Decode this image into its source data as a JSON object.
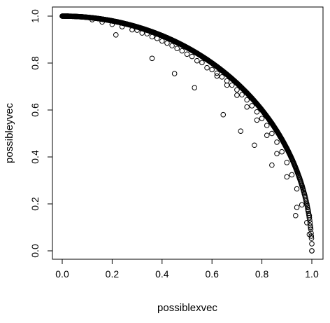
{
  "chart_data": {
    "type": "scatter",
    "title": "",
    "xlabel": "possiblexvec",
    "ylabel": "possibleyvec",
    "xlim": [
      0.0,
      1.0
    ],
    "ylim": [
      0.0,
      1.0
    ],
    "x_ticks": [
      0.0,
      0.2,
      0.4,
      0.6,
      0.8,
      1.0
    ],
    "y_ticks": [
      0.0,
      0.2,
      0.4,
      0.6,
      0.8,
      1.0
    ],
    "x_tick_labels": [
      "0.0",
      "0.2",
      "0.4",
      "0.6",
      "0.8",
      "1.0"
    ],
    "y_tick_labels": [
      "0.0",
      "0.2",
      "0.4",
      "0.6",
      "0.8",
      "1.0"
    ],
    "grid": false,
    "legend": "none",
    "marker": "open-circle",
    "marker_color": "#000000",
    "series": [
      {
        "points": [
          [
            0.0,
            1.0
          ],
          [
            0.02,
            1.0
          ],
          [
            0.04,
            0.999
          ],
          [
            0.06,
            0.998
          ],
          [
            0.08,
            0.997
          ],
          [
            0.1,
            0.995
          ],
          [
            0.12,
            0.993
          ],
          [
            0.14,
            0.99
          ],
          [
            0.16,
            0.987
          ],
          [
            0.18,
            0.984
          ],
          [
            0.2,
            0.98
          ],
          [
            0.22,
            0.976
          ],
          [
            0.24,
            0.971
          ],
          [
            0.26,
            0.966
          ],
          [
            0.28,
            0.96
          ],
          [
            0.3,
            0.954
          ],
          [
            0.32,
            0.947
          ],
          [
            0.34,
            0.94
          ],
          [
            0.36,
            0.933
          ],
          [
            0.38,
            0.925
          ],
          [
            0.4,
            0.917
          ],
          [
            0.42,
            0.908
          ],
          [
            0.44,
            0.898
          ],
          [
            0.46,
            0.888
          ],
          [
            0.48,
            0.877
          ],
          [
            0.5,
            0.866
          ],
          [
            0.52,
            0.854
          ],
          [
            0.54,
            0.842
          ],
          [
            0.56,
            0.828
          ],
          [
            0.58,
            0.815
          ],
          [
            0.6,
            0.8
          ],
          [
            0.62,
            0.785
          ],
          [
            0.64,
            0.768
          ],
          [
            0.66,
            0.751
          ],
          [
            0.68,
            0.733
          ],
          [
            0.7,
            0.714
          ],
          [
            0.72,
            0.694
          ],
          [
            0.74,
            0.673
          ],
          [
            0.76,
            0.65
          ],
          [
            0.78,
            0.626
          ],
          [
            0.8,
            0.6
          ],
          [
            0.82,
            0.572
          ],
          [
            0.84,
            0.543
          ],
          [
            0.86,
            0.51
          ],
          [
            0.88,
            0.475
          ],
          [
            0.9,
            0.436
          ],
          [
            0.92,
            0.392
          ],
          [
            0.94,
            0.341
          ],
          [
            0.95,
            0.312
          ],
          [
            0.96,
            0.28
          ],
          [
            0.97,
            0.243
          ],
          [
            0.98,
            0.199
          ],
          [
            0.985,
            0.173
          ],
          [
            0.99,
            0.141
          ],
          [
            0.995,
            0.1
          ],
          [
            0.998,
            0.063
          ],
          [
            1.0,
            0.03
          ],
          [
            1.0,
            0.0
          ],
          [
            0.12,
            0.985
          ],
          [
            0.16,
            0.975
          ],
          [
            0.2,
            0.965
          ],
          [
            0.24,
            0.955
          ],
          [
            0.28,
            0.942
          ],
          [
            0.32,
            0.928
          ],
          [
            0.36,
            0.912
          ],
          [
            0.4,
            0.894
          ],
          [
            0.44,
            0.874
          ],
          [
            0.48,
            0.852
          ],
          [
            0.52,
            0.828
          ],
          [
            0.56,
            0.802
          ],
          [
            0.6,
            0.772
          ],
          [
            0.62,
            0.757
          ],
          [
            0.64,
            0.741
          ],
          [
            0.66,
            0.724
          ],
          [
            0.68,
            0.706
          ],
          [
            0.7,
            0.686
          ],
          [
            0.72,
            0.665
          ],
          [
            0.74,
            0.643
          ],
          [
            0.76,
            0.618
          ],
          [
            0.78,
            0.592
          ],
          [
            0.8,
            0.564
          ],
          [
            0.82,
            0.534
          ],
          [
            0.84,
            0.5
          ],
          [
            0.86,
            0.463
          ],
          [
            0.88,
            0.422
          ],
          [
            0.9,
            0.376
          ],
          [
            0.92,
            0.324
          ],
          [
            0.94,
            0.264
          ],
          [
            0.96,
            0.196
          ],
          [
            0.98,
            0.12
          ],
          [
            0.99,
            0.07
          ],
          [
            0.3,
            0.94
          ],
          [
            0.34,
            0.925
          ],
          [
            0.38,
            0.905
          ],
          [
            0.42,
            0.885
          ],
          [
            0.46,
            0.862
          ],
          [
            0.5,
            0.838
          ],
          [
            0.54,
            0.81
          ],
          [
            0.58,
            0.78
          ],
          [
            0.62,
            0.745
          ],
          [
            0.66,
            0.706
          ],
          [
            0.7,
            0.663
          ],
          [
            0.74,
            0.613
          ],
          [
            0.78,
            0.557
          ],
          [
            0.82,
            0.492
          ],
          [
            0.86,
            0.414
          ],
          [
            0.9,
            0.315
          ],
          [
            0.94,
            0.185
          ],
          [
            0.215,
            0.92
          ],
          [
            0.36,
            0.82
          ],
          [
            0.45,
            0.755
          ],
          [
            0.53,
            0.695
          ],
          [
            0.645,
            0.58
          ],
          [
            0.715,
            0.51
          ],
          [
            0.77,
            0.45
          ],
          [
            0.84,
            0.365
          ],
          [
            0.935,
            0.15
          ],
          [
            0.99,
            0.15
          ]
        ]
      }
    ]
  }
}
